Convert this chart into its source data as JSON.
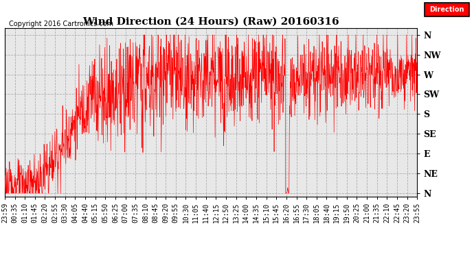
{
  "title": "Wind Direction (24 Hours) (Raw) 20160316",
  "copyright": "Copyright 2016 Cartronics.com",
  "legend_label": "Direction",
  "legend_bg": "#FF0000",
  "legend_fg": "#FFFFFF",
  "line_color": "#FF0000",
  "bg_color": "#FFFFFF",
  "plot_bg_color": "#E8E8E8",
  "grid_color": "#AAAAAA",
  "y_labels": [
    "N",
    "NE",
    "E",
    "SE",
    "S",
    "SW",
    "W",
    "NW",
    "N"
  ],
  "y_values": [
    0,
    45,
    90,
    135,
    180,
    225,
    270,
    315,
    360
  ],
  "ylim": [
    -8,
    375
  ],
  "x_labels": [
    "23:59",
    "00:35",
    "01:10",
    "01:45",
    "02:20",
    "02:55",
    "03:30",
    "04:05",
    "04:40",
    "05:15",
    "05:50",
    "06:25",
    "07:00",
    "07:35",
    "08:10",
    "08:45",
    "09:20",
    "09:55",
    "10:30",
    "11:05",
    "11:40",
    "12:15",
    "12:50",
    "13:25",
    "14:00",
    "14:35",
    "15:10",
    "15:45",
    "16:20",
    "16:55",
    "17:30",
    "18:05",
    "18:40",
    "19:15",
    "19:50",
    "20:25",
    "21:00",
    "21:35",
    "22:10",
    "22:45",
    "23:20",
    "23:55"
  ],
  "title_fontsize": 11,
  "axis_fontsize": 7,
  "copyright_fontsize": 7
}
